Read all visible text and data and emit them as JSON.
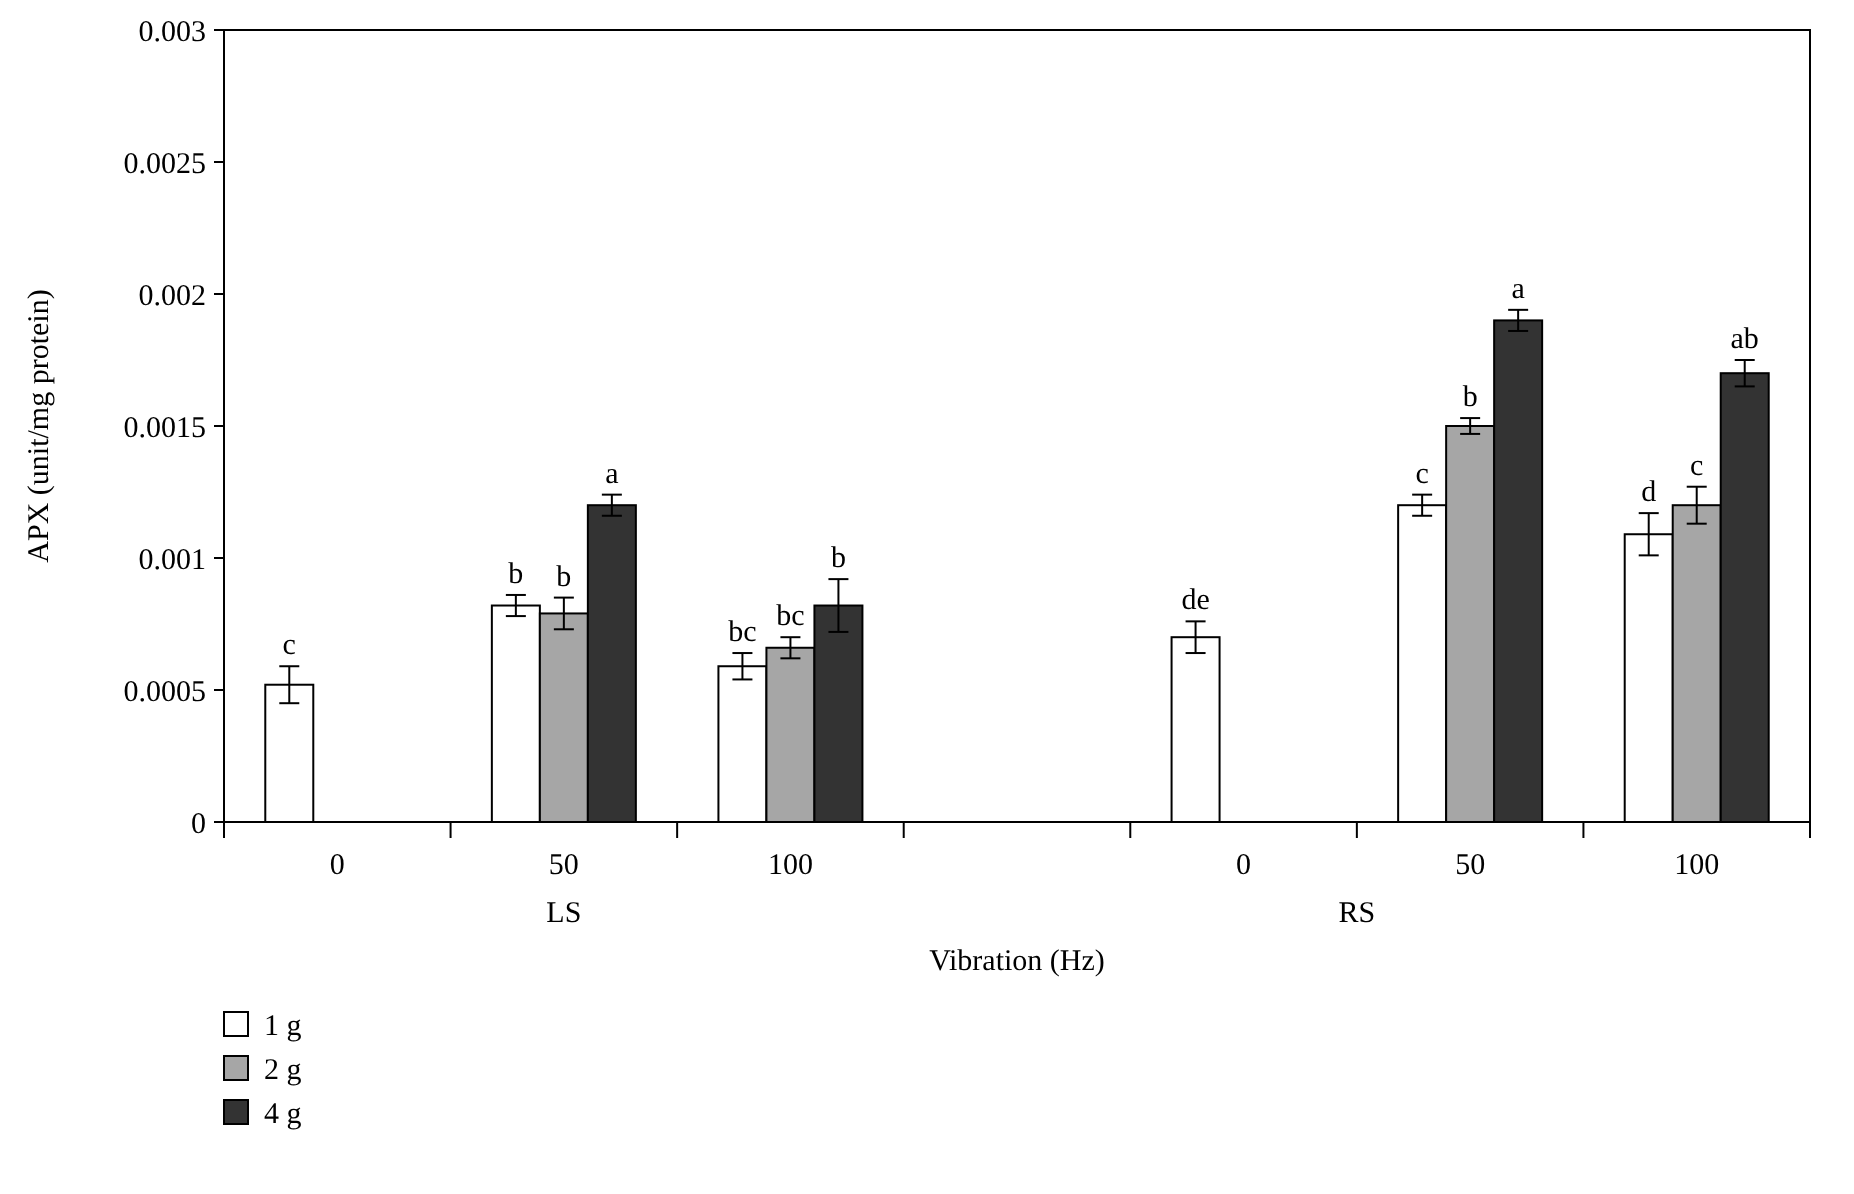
{
  "chart_data": {
    "type": "bar",
    "xlabel": "Vibration (Hz)",
    "ylabel": "APX (unit/mg protein)",
    "categories": [
      "0",
      "50",
      "100",
      null,
      "0",
      "50",
      "100"
    ],
    "series": [
      {
        "name": "1 g",
        "color": "#ffffff",
        "values": [
          0.00052,
          0.00082,
          0.00059,
          null,
          0.0007,
          0.0012,
          0.00109
        ],
        "errors": [
          7e-05,
          4e-05,
          5e-05,
          null,
          6e-05,
          4e-05,
          8e-05
        ],
        "value_labels": [
          "c",
          "b",
          "bc",
          null,
          "de",
          "c",
          "d"
        ]
      },
      {
        "name": "2 g",
        "color": "#a6a6a6",
        "values": [
          null,
          0.00079,
          0.00066,
          null,
          null,
          0.0015,
          0.0012
        ],
        "errors": [
          null,
          6e-05,
          4e-05,
          null,
          null,
          3e-05,
          7e-05
        ],
        "value_labels": [
          null,
          "b",
          "bc",
          null,
          null,
          "b",
          "c"
        ]
      },
      {
        "name": "4 g",
        "color": "#333333",
        "values": [
          null,
          0.0012,
          0.00082,
          null,
          null,
          0.0019,
          0.0017
        ],
        "errors": [
          null,
          4e-05,
          0.0001,
          null,
          null,
          4e-05,
          5e-05
        ],
        "value_labels": [
          null,
          "a",
          "b",
          null,
          null,
          "a",
          "ab"
        ]
      }
    ],
    "annotations": [
      "LS",
      "RS"
    ],
    "ylim": [
      0,
      0.003
    ],
    "yticks": [
      0,
      0.0005,
      0.001,
      0.0015,
      0.002,
      0.0025,
      0.003
    ],
    "grid": false,
    "legend": "bottom left"
  }
}
